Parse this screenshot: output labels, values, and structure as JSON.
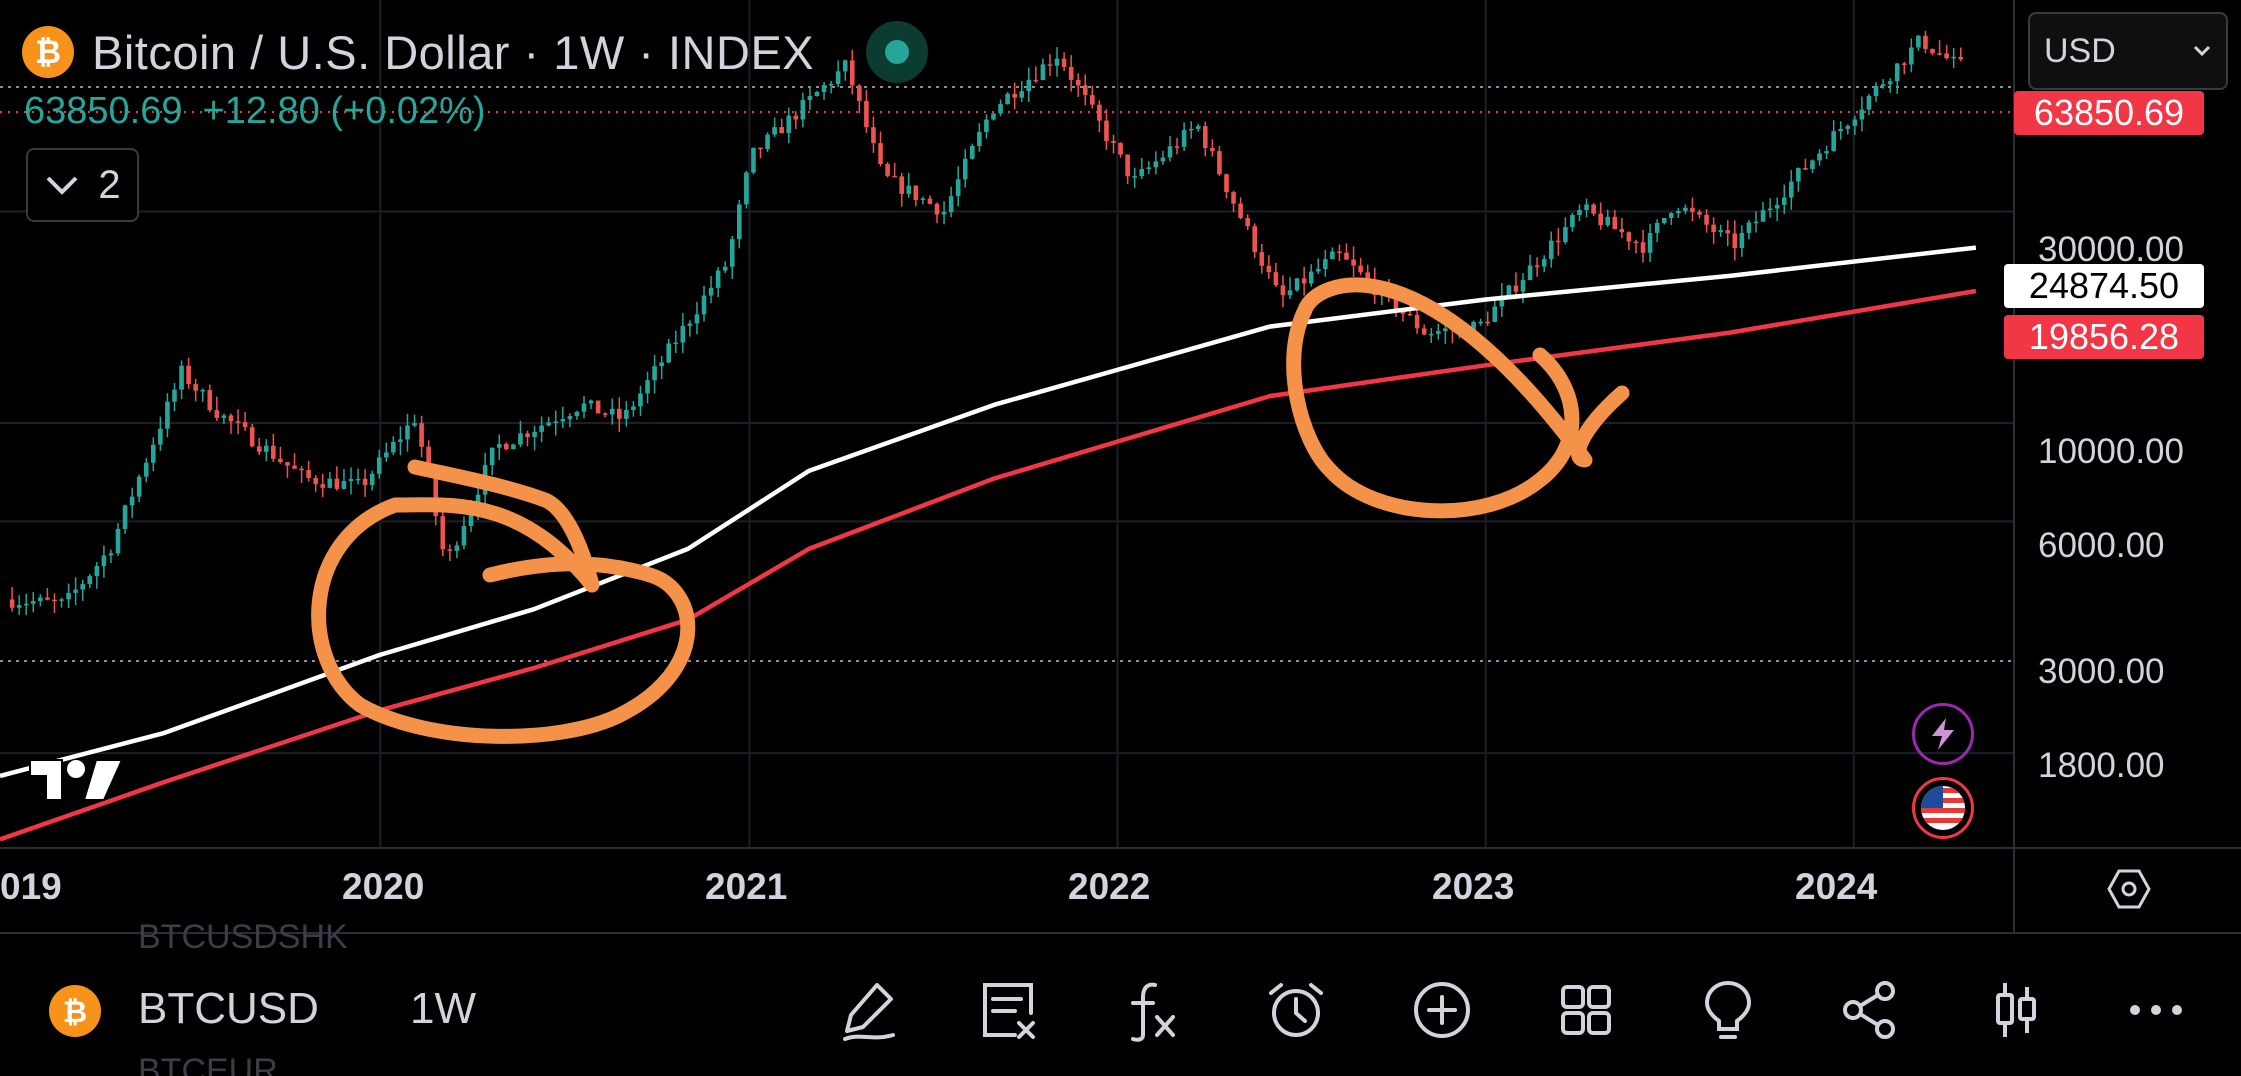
{
  "header": {
    "coin_symbol": "₿",
    "title": "Bitcoin / U.S. Dollar · 1W · INDEX",
    "price": "63850.69",
    "change": "+12.80 (+0.02%)",
    "indicators_count": "2",
    "currency": "USD"
  },
  "price_scale": {
    "current_price_tag": "63850.69",
    "white_ma_tag": "24874.50",
    "red_ma_tag": "19856.28",
    "labels": [
      "30000.00",
      "10000.00",
      "6000.00",
      "3000.00",
      "1800.00"
    ]
  },
  "time_axis": {
    "labels": [
      "019",
      "2020",
      "2021",
      "2022",
      "2023",
      "2024"
    ]
  },
  "bottom_bar": {
    "ghost_above": "BTCUSDSHK",
    "ghost_below": "BTCEUR",
    "symbol": "BTCUSD",
    "interval": "1W",
    "tools": [
      "draw-icon",
      "notes-icon",
      "indicators-icon",
      "alert-icon",
      "add-icon",
      "layouts-icon",
      "ideas-icon",
      "share-icon",
      "chart-type-icon",
      "more-icon"
    ]
  },
  "colors": {
    "up": "#26a69a",
    "down": "#ef5350",
    "ma_white": "#ffffff",
    "ma_red": "#f23645",
    "annotation": "#f5924a",
    "price_tag": "#f23645"
  },
  "chart_data": {
    "type": "candlestick",
    "scale": "log",
    "interval": "1W",
    "ylim": [
      1100,
      90000
    ],
    "xlim": [
      "2018-12-20",
      "2024-05-15"
    ],
    "last_price": 63850.69,
    "price_path": [
      [
        "2019-01-01",
        4000
      ],
      [
        "2019-03-01",
        3900
      ],
      [
        "2019-04-15",
        5200
      ],
      [
        "2019-06-25",
        13000
      ],
      [
        "2019-08-01",
        10500
      ],
      [
        "2019-10-25",
        7500
      ],
      [
        "2019-12-20",
        7200
      ],
      [
        "2020-02-12",
        10300
      ],
      [
        "2020-03-13",
        4800
      ],
      [
        "2020-05-01",
        8800
      ],
      [
        "2020-07-25",
        11000
      ],
      [
        "2020-09-05",
        10200
      ],
      [
        "2020-12-17",
        23000
      ],
      [
        "2021-01-10",
        40000
      ],
      [
        "2021-04-14",
        64000
      ],
      [
        "2021-05-20",
        36000
      ],
      [
        "2021-07-20",
        30000
      ],
      [
        "2021-09-05",
        51000
      ],
      [
        "2021-11-10",
        68000
      ],
      [
        "2022-01-24",
        35000
      ],
      [
        "2022-03-28",
        47000
      ],
      [
        "2022-06-18",
        19000
      ],
      [
        "2022-08-14",
        24000
      ],
      [
        "2022-11-09",
        16000
      ],
      [
        "2023-01-01",
        16500
      ],
      [
        "2023-04-14",
        30300
      ],
      [
        "2023-06-15",
        25000
      ],
      [
        "2023-07-14",
        31500
      ],
      [
        "2023-09-11",
        25200
      ],
      [
        "2023-12-05",
        41000
      ],
      [
        "2024-03-14",
        73000
      ],
      [
        "2024-04-20",
        63850.69
      ]
    ],
    "series": [
      {
        "label": "24874.50",
        "color": "#ffffff",
        "points": [
          [
            "2018-12-20",
            1600
          ],
          [
            "2019-06-01",
            2000
          ],
          [
            "2020-01-01",
            3000
          ],
          [
            "2020-06-01",
            3800
          ],
          [
            "2020-11-01",
            5200
          ],
          [
            "2021-03-01",
            7800
          ],
          [
            "2021-09-01",
            11000
          ],
          [
            "2022-06-01",
            16500
          ],
          [
            "2023-01-01",
            19000
          ],
          [
            "2023-09-01",
            21500
          ],
          [
            "2024-05-01",
            24874.5
          ]
        ]
      },
      {
        "label": "19856.28",
        "color": "#f23645",
        "points": [
          [
            "2018-12-20",
            1150
          ],
          [
            "2019-06-01",
            1550
          ],
          [
            "2020-01-01",
            2250
          ],
          [
            "2020-06-01",
            2800
          ],
          [
            "2020-11-01",
            3600
          ],
          [
            "2021-03-01",
            5200
          ],
          [
            "2021-09-01",
            7500
          ],
          [
            "2022-06-01",
            11500
          ],
          [
            "2023-01-01",
            13500
          ],
          [
            "2023-09-01",
            16000
          ],
          [
            "2024-05-01",
            19856.28
          ]
        ]
      }
    ]
  }
}
